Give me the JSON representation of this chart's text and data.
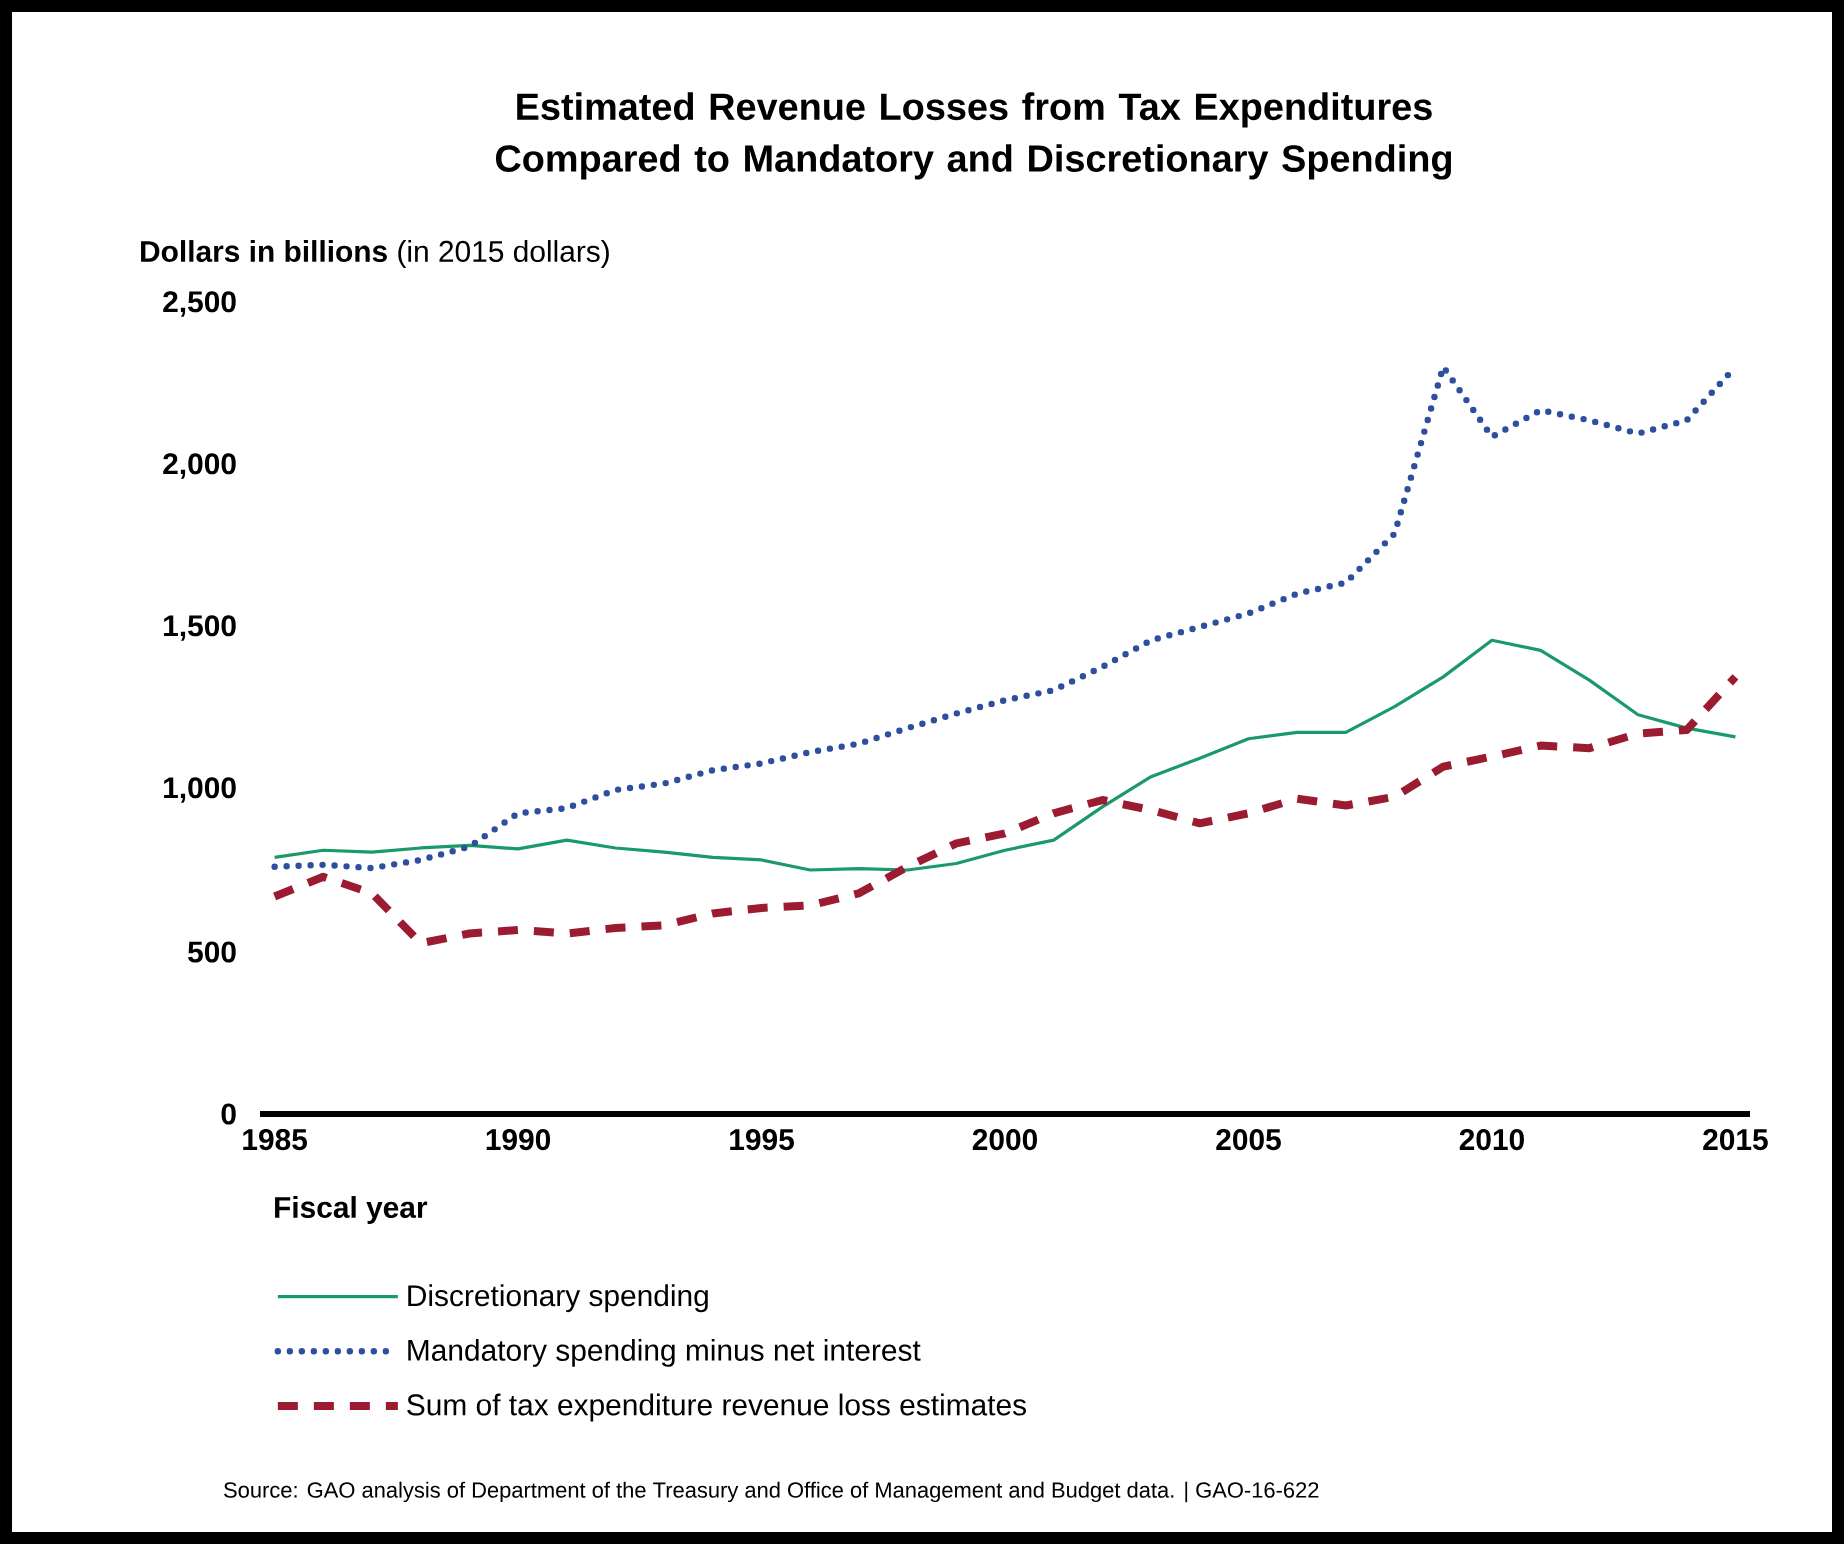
{
  "chart_data": {
    "type": "line",
    "title": "Estimated Revenue Losses from Tax Expenditures Compared to Mandatory and Discretionary Spending",
    "ylabel": "**Dollars in billions** (in 2015 dollars)",
    "xlabel": "Fiscal year",
    "x": [
      1985,
      1986,
      1987,
      1988,
      1989,
      1990,
      1991,
      1992,
      1993,
      1994,
      1995,
      1996,
      1997,
      1998,
      1999,
      2000,
      2001,
      2002,
      2003,
      2004,
      2005,
      2006,
      2007,
      2008,
      2009,
      2010,
      2011,
      2012,
      2013,
      2014,
      2015
    ],
    "series": [
      {
        "name": "Discretionary spending",
        "color": "#1a9a6a",
        "line_style": "solid",
        "values": [
          792,
          814,
          808,
          821,
          829,
          818,
          845,
          821,
          808,
          792,
          784,
          753,
          757,
          753,
          773,
          814,
          845,
          948,
          1041,
          1098,
          1158,
          1178,
          1178,
          1257,
          1349,
          1462,
          1431,
          1339,
          1232,
          1191,
          1164
        ]
      },
      {
        "name": "Mandatory spending minus net interest",
        "color": "#2e4f9e",
        "line_style": "dotted",
        "values": [
          763,
          769,
          759,
          784,
          825,
          928,
          944,
          1000,
          1020,
          1061,
          1082,
          1117,
          1143,
          1191,
          1236,
          1277,
          1308,
          1380,
          1462,
          1503,
          1545,
          1606,
          1640,
          1791,
          2306,
          2090,
          2172,
          2141,
          2100,
          2141,
          2306
        ]
      },
      {
        "name": "Sum of tax expenditure revenue loss estimates",
        "color": "#9b1b30",
        "line_style": "dashed",
        "values": [
          671,
          732,
          681,
          527,
          557,
          568,
          557,
          574,
          582,
          619,
          636,
          644,
          681,
          763,
          835,
          866,
          928,
          969,
          938,
          897,
          928,
          973,
          952,
          979,
          1072,
          1103,
          1137,
          1129,
          1174,
          1185,
          1349
        ]
      }
    ],
    "xlim": [
      1984.7,
      2015.3
    ],
    "ylim": [
      0,
      2500
    ],
    "xticks": [
      1985,
      1990,
      1995,
      2000,
      2005,
      2010,
      2015
    ],
    "yticks": [
      0,
      500,
      {
        "value": 1000,
        "label": "1,000"
      },
      {
        "value": 1500,
        "label": "1,500"
      },
      {
        "value": 2000,
        "label": "2,000"
      },
      {
        "value": 2500,
        "label": "2,500"
      }
    ],
    "grid": false,
    "legend": "bottom",
    "annotations": [
      "Source: GAO analysis of Department of the Treasury and Office of Management and Budget data.  |  GAO-16-622"
    ]
  }
}
